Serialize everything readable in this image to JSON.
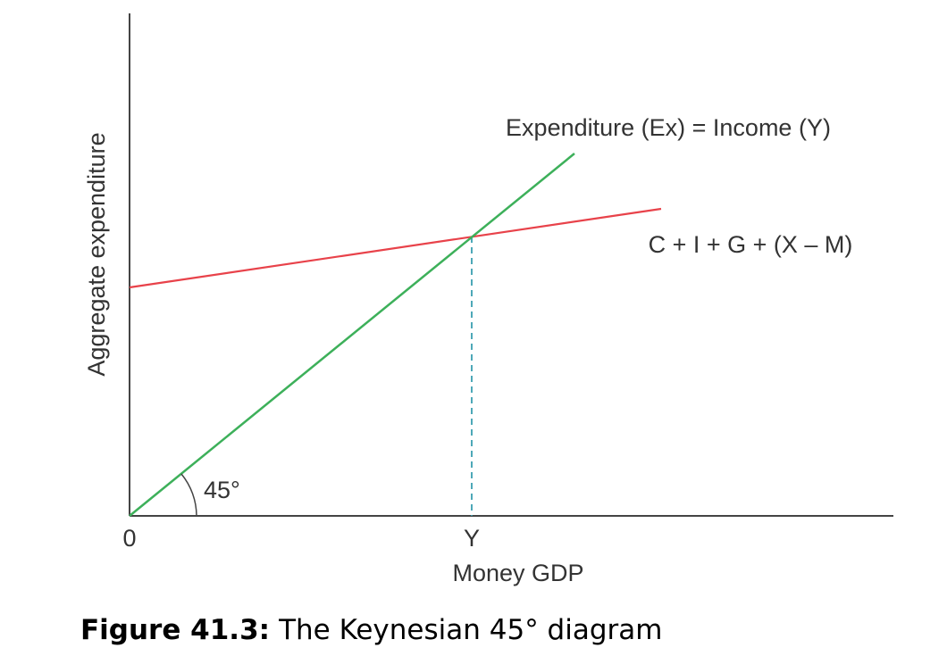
{
  "axes": {
    "y_label": "Aggregate expenditure",
    "x_label": "Money GDP",
    "origin_label": "0",
    "x_marker": "Y"
  },
  "lines": [
    {
      "label": "Expenditure (Ex) = Income (Y)"
    },
    {
      "label": "C + I + G + (X – M)"
    }
  ],
  "angle_label": "45°",
  "caption": {
    "number": "Figure 41.3:",
    "text": "The Keynesian 45° diagram"
  }
}
